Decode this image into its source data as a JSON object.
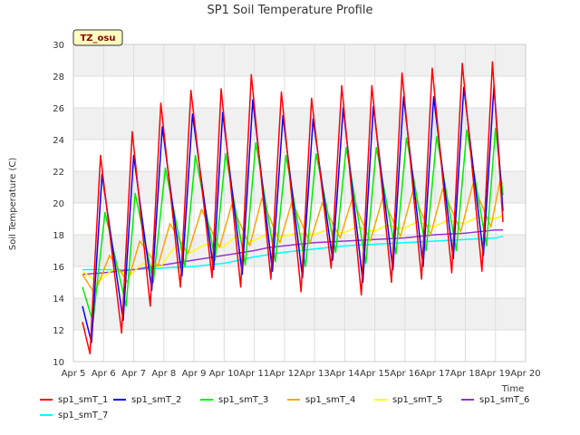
{
  "chart_data": {
    "type": "line",
    "title": "SP1 Soil Temperature Profile",
    "xlabel": "Time",
    "ylabel": "Soil Temperature (C)",
    "site_label": "TZ_osu",
    "xlim": [
      5,
      20
    ],
    "ylim": [
      10,
      30
    ],
    "x_ticks": [
      {
        "v": 5,
        "label": "Apr 5"
      },
      {
        "v": 6,
        "label": "Apr 6"
      },
      {
        "v": 7,
        "label": "Apr 7"
      },
      {
        "v": 8,
        "label": "Apr 8"
      },
      {
        "v": 9,
        "label": "Apr 9"
      },
      {
        "v": 10,
        "label": "Apr 10"
      },
      {
        "v": 11,
        "label": "Apr 11"
      },
      {
        "v": 12,
        "label": "Apr 12"
      },
      {
        "v": 13,
        "label": "Apr 13"
      },
      {
        "v": 14,
        "label": "Apr 14"
      },
      {
        "v": 15,
        "label": "Apr 15"
      },
      {
        "v": 16,
        "label": "Apr 16"
      },
      {
        "v": 17,
        "label": "Apr 17"
      },
      {
        "v": 18,
        "label": "Apr 18"
      },
      {
        "v": 19,
        "label": "Apr 19"
      },
      {
        "v": 20,
        "label": "Apr 20"
      }
    ],
    "y_ticks": [
      10,
      12,
      14,
      16,
      18,
      20,
      22,
      24,
      26,
      28,
      30
    ],
    "series": [
      {
        "name": "sp1_smT_1",
        "color": "#ff0000",
        "points": [
          [
            5.3,
            12.5
          ],
          [
            5.55,
            10.5
          ],
          [
            5.9,
            23.0
          ],
          [
            6.6,
            11.8
          ],
          [
            6.95,
            24.5
          ],
          [
            7.55,
            13.5
          ],
          [
            7.9,
            26.3
          ],
          [
            8.55,
            14.7
          ],
          [
            8.9,
            27.1
          ],
          [
            9.6,
            15.3
          ],
          [
            9.9,
            27.2
          ],
          [
            10.55,
            14.7
          ],
          [
            10.9,
            28.1
          ],
          [
            11.55,
            15.2
          ],
          [
            11.9,
            27.0
          ],
          [
            12.55,
            14.4
          ],
          [
            12.9,
            26.6
          ],
          [
            13.55,
            15.9
          ],
          [
            13.9,
            27.4
          ],
          [
            14.55,
            14.2
          ],
          [
            14.9,
            27.4
          ],
          [
            15.55,
            15.0
          ],
          [
            15.9,
            28.2
          ],
          [
            16.55,
            15.2
          ],
          [
            16.9,
            28.5
          ],
          [
            17.55,
            15.6
          ],
          [
            17.9,
            28.8
          ],
          [
            18.55,
            15.7
          ],
          [
            18.9,
            28.9
          ],
          [
            19.25,
            18.8
          ]
        ]
      },
      {
        "name": "sp1_smT_2",
        "color": "#0000ff",
        "points": [
          [
            5.3,
            13.5
          ],
          [
            5.6,
            11.2
          ],
          [
            5.95,
            21.8
          ],
          [
            6.65,
            12.6
          ],
          [
            7.0,
            23.0
          ],
          [
            7.6,
            14.5
          ],
          [
            7.95,
            24.8
          ],
          [
            8.6,
            15.4
          ],
          [
            8.95,
            25.6
          ],
          [
            9.65,
            15.8
          ],
          [
            9.95,
            25.7
          ],
          [
            10.6,
            15.5
          ],
          [
            10.95,
            26.5
          ],
          [
            11.6,
            15.7
          ],
          [
            11.95,
            25.5
          ],
          [
            12.6,
            15.3
          ],
          [
            12.95,
            25.3
          ],
          [
            13.6,
            16.4
          ],
          [
            13.95,
            26.0
          ],
          [
            14.6,
            15.0
          ],
          [
            14.95,
            26.1
          ],
          [
            15.6,
            15.8
          ],
          [
            15.95,
            26.7
          ],
          [
            16.6,
            16.0
          ],
          [
            16.95,
            26.7
          ],
          [
            17.6,
            16.5
          ],
          [
            17.95,
            27.3
          ],
          [
            18.6,
            16.7
          ],
          [
            18.95,
            27.4
          ],
          [
            19.25,
            19.5
          ]
        ]
      },
      {
        "name": "sp1_smT_3",
        "color": "#00ee00",
        "points": [
          [
            5.3,
            14.7
          ],
          [
            5.65,
            12.5
          ],
          [
            6.05,
            19.4
          ],
          [
            6.75,
            13.5
          ],
          [
            7.05,
            20.6
          ],
          [
            7.65,
            15.0
          ],
          [
            8.05,
            22.2
          ],
          [
            8.7,
            16.0
          ],
          [
            9.05,
            23.0
          ],
          [
            9.7,
            16.4
          ],
          [
            10.05,
            23.1
          ],
          [
            10.7,
            16.1
          ],
          [
            11.05,
            23.8
          ],
          [
            11.7,
            16.3
          ],
          [
            12.05,
            23.0
          ],
          [
            12.7,
            16.0
          ],
          [
            13.05,
            23.1
          ],
          [
            13.7,
            16.9
          ],
          [
            14.05,
            23.5
          ],
          [
            14.7,
            16.2
          ],
          [
            15.05,
            23.5
          ],
          [
            15.7,
            16.8
          ],
          [
            16.05,
            24.1
          ],
          [
            16.7,
            17.0
          ],
          [
            17.05,
            24.2
          ],
          [
            17.7,
            17.0
          ],
          [
            18.05,
            24.6
          ],
          [
            18.7,
            17.3
          ],
          [
            19.0,
            24.7
          ],
          [
            19.25,
            20.5
          ]
        ]
      },
      {
        "name": "sp1_smT_4",
        "color": "#ffa500",
        "points": [
          [
            5.3,
            15.5
          ],
          [
            5.7,
            14.3
          ],
          [
            6.2,
            16.7
          ],
          [
            6.8,
            15.0
          ],
          [
            7.2,
            17.6
          ],
          [
            7.8,
            16.0
          ],
          [
            8.2,
            18.7
          ],
          [
            8.8,
            16.8
          ],
          [
            9.25,
            19.6
          ],
          [
            9.85,
            17.2
          ],
          [
            10.25,
            19.9
          ],
          [
            10.85,
            17.3
          ],
          [
            11.25,
            20.3
          ],
          [
            11.85,
            17.5
          ],
          [
            12.25,
            20.1
          ],
          [
            12.85,
            17.5
          ],
          [
            13.25,
            20.0
          ],
          [
            13.85,
            17.8
          ],
          [
            14.25,
            20.3
          ],
          [
            14.85,
            17.6
          ],
          [
            15.25,
            20.3
          ],
          [
            15.85,
            17.9
          ],
          [
            16.25,
            20.7
          ],
          [
            16.85,
            18.0
          ],
          [
            17.25,
            20.9
          ],
          [
            17.85,
            18.2
          ],
          [
            18.25,
            21.2
          ],
          [
            18.85,
            18.5
          ],
          [
            19.15,
            21.4
          ],
          [
            19.25,
            21.2
          ]
        ]
      },
      {
        "name": "sp1_smT_5",
        "color": "#ffff00",
        "points": [
          [
            5.3,
            15.7
          ],
          [
            5.8,
            15.0
          ],
          [
            6.3,
            15.8
          ],
          [
            6.9,
            15.5
          ],
          [
            7.3,
            16.2
          ],
          [
            7.9,
            16.0
          ],
          [
            8.35,
            17.2
          ],
          [
            8.9,
            16.9
          ],
          [
            9.4,
            17.4
          ],
          [
            9.95,
            17.2
          ],
          [
            10.4,
            17.9
          ],
          [
            10.95,
            17.6
          ],
          [
            11.4,
            18.0
          ],
          [
            11.95,
            17.9
          ],
          [
            12.4,
            18.1
          ],
          [
            12.95,
            18.0
          ],
          [
            13.4,
            18.3
          ],
          [
            13.95,
            18.1
          ],
          [
            14.4,
            18.5
          ],
          [
            14.95,
            18.2
          ],
          [
            15.4,
            18.6
          ],
          [
            15.95,
            18.4
          ],
          [
            16.4,
            18.8
          ],
          [
            16.95,
            18.5
          ],
          [
            17.4,
            18.9
          ],
          [
            17.95,
            18.7
          ],
          [
            18.4,
            19.1
          ],
          [
            18.95,
            19.0
          ],
          [
            19.25,
            19.2
          ]
        ]
      },
      {
        "name": "sp1_smT_6",
        "color": "#9932cc",
        "points": [
          [
            5.3,
            15.5
          ],
          [
            6.0,
            15.6
          ],
          [
            7.0,
            15.8
          ],
          [
            8.0,
            16.1
          ],
          [
            9.0,
            16.4
          ],
          [
            10.0,
            16.7
          ],
          [
            11.0,
            17.0
          ],
          [
            11.5,
            17.2
          ],
          [
            12.0,
            17.3
          ],
          [
            13.0,
            17.5
          ],
          [
            14.0,
            17.6
          ],
          [
            15.0,
            17.7
          ],
          [
            16.0,
            17.8
          ],
          [
            17.0,
            18.0
          ],
          [
            18.0,
            18.1
          ],
          [
            19.0,
            18.3
          ],
          [
            19.25,
            18.3
          ]
        ]
      },
      {
        "name": "sp1_smT_7",
        "color": "#00ffff",
        "points": [
          [
            5.3,
            15.8
          ],
          [
            6.0,
            15.8
          ],
          [
            7.0,
            15.8
          ],
          [
            8.0,
            15.9
          ],
          [
            9.0,
            16.0
          ],
          [
            10.0,
            16.2
          ],
          [
            11.0,
            16.6
          ],
          [
            12.0,
            16.9
          ],
          [
            13.0,
            17.1
          ],
          [
            14.0,
            17.3
          ],
          [
            15.0,
            17.4
          ],
          [
            16.0,
            17.5
          ],
          [
            17.0,
            17.6
          ],
          [
            18.0,
            17.7
          ],
          [
            19.0,
            17.8
          ],
          [
            19.25,
            17.9
          ]
        ]
      }
    ]
  }
}
